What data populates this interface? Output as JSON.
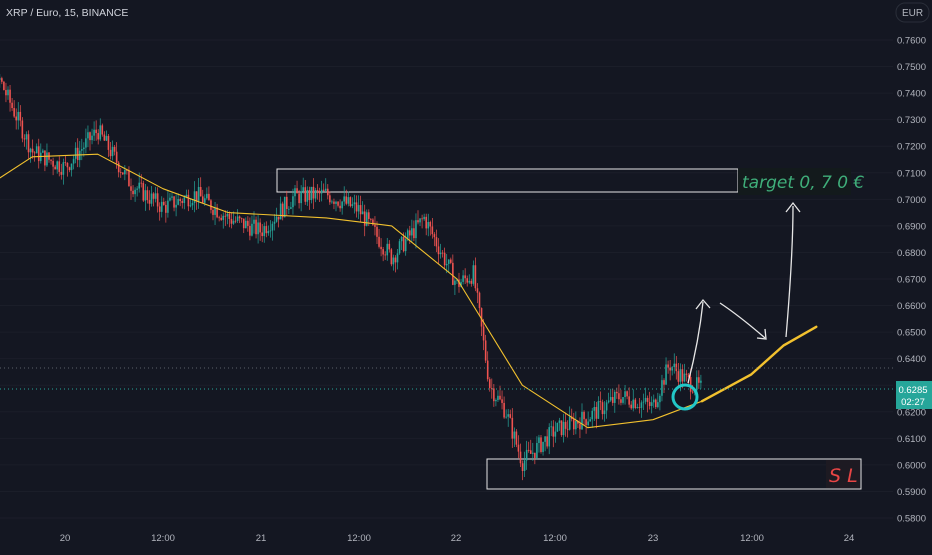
{
  "header": {
    "symbol_title": "XRP / Euro, 15, BINANCE",
    "currency_button": "EUR"
  },
  "price_axis": {
    "ticks": [
      "0.7600",
      "0.7500",
      "0.7400",
      "0.7300",
      "0.7200",
      "0.7100",
      "0.7000",
      "0.6900",
      "0.6800",
      "0.6700",
      "0.6600",
      "0.6500",
      "0.6400",
      "0.6300",
      "0.6200",
      "0.6100",
      "0.6000",
      "0.5900",
      "0.5800"
    ],
    "current_price": "0.6285",
    "countdown": "02:27"
  },
  "time_axis": {
    "ticks": [
      "20",
      "12:00",
      "21",
      "12:00",
      "22",
      "12:00",
      "23",
      "12:00",
      "24"
    ]
  },
  "annotations": {
    "target_label": "target 0, 7 0 €",
    "stop_loss_label": "S L"
  },
  "colors": {
    "background": "#141722",
    "up_candle": "#26a69a",
    "down_candle": "#ef5350",
    "moving_average": "#f2c12e",
    "price_line": "#26a69a",
    "target_text": "#3fae7a",
    "stop_loss_text": "#e84545",
    "circle": "#22c7c7",
    "box": "#e6e6e6"
  },
  "chart_data": {
    "type": "candlestick",
    "title": "XRP / Euro, 15, BINANCE",
    "timeframe": "15",
    "y_axis": {
      "unit": "EUR",
      "ylim": [
        0.577,
        0.775
      ]
    },
    "x_axis": {
      "tick_labels": [
        "20",
        "12:00",
        "21",
        "12:00",
        "22",
        "12:00",
        "23",
        "12:00",
        "24"
      ]
    },
    "last_price": 0.6285,
    "price_path": [
      {
        "t": "19 12:00",
        "p": 0.7
      },
      {
        "t": "19 16:00",
        "p": 0.745
      },
      {
        "t": "19 20:00",
        "p": 0.718
      },
      {
        "t": "20 00:00",
        "p": 0.712
      },
      {
        "t": "20 04:00",
        "p": 0.726
      },
      {
        "t": "20 08:00",
        "p": 0.706
      },
      {
        "t": "20 12:00",
        "p": 0.697
      },
      {
        "t": "20 16:00",
        "p": 0.702
      },
      {
        "t": "20 20:00",
        "p": 0.693
      },
      {
        "t": "21 00:00",
        "p": 0.688
      },
      {
        "t": "21 04:00",
        "p": 0.701
      },
      {
        "t": "21 08:00",
        "p": 0.702
      },
      {
        "t": "21 12:00",
        "p": 0.696
      },
      {
        "t": "21 16:00",
        "p": 0.678
      },
      {
        "t": "21 20:00",
        "p": 0.693
      },
      {
        "t": "22 00:00",
        "p": 0.668
      },
      {
        "t": "22 02:00",
        "p": 0.672
      },
      {
        "t": "22 04:00",
        "p": 0.63
      },
      {
        "t": "22 06:00",
        "p": 0.62
      },
      {
        "t": "22 08:00",
        "p": 0.601
      },
      {
        "t": "22 12:00",
        "p": 0.613
      },
      {
        "t": "22 16:00",
        "p": 0.618
      },
      {
        "t": "22 20:00",
        "p": 0.626
      },
      {
        "t": "23 00:00",
        "p": 0.622
      },
      {
        "t": "23 02:00",
        "p": 0.638
      },
      {
        "t": "23 04:00",
        "p": 0.632
      },
      {
        "t": "23 06:00",
        "p": 0.6285
      }
    ],
    "moving_average": [
      {
        "t": "19 12:00",
        "p": 0.7
      },
      {
        "t": "19 20:00",
        "p": 0.716
      },
      {
        "t": "20 04:00",
        "p": 0.717
      },
      {
        "t": "20 12:00",
        "p": 0.704
      },
      {
        "t": "20 20:00",
        "p": 0.695
      },
      {
        "t": "21 08:00",
        "p": 0.693
      },
      {
        "t": "21 16:00",
        "p": 0.69
      },
      {
        "t": "22 00:00",
        "p": 0.67
      },
      {
        "t": "22 08:00",
        "p": 0.63
      },
      {
        "t": "22 16:00",
        "p": 0.614
      },
      {
        "t": "23 00:00",
        "p": 0.617
      },
      {
        "t": "23 06:00",
        "p": 0.624
      }
    ],
    "projected_average": [
      {
        "t": "23 06:00",
        "p": 0.624
      },
      {
        "t": "23 12:00",
        "p": 0.634
      },
      {
        "t": "23 16:00",
        "p": 0.645
      },
      {
        "t": "23 20:00",
        "p": 0.652
      }
    ],
    "zones": [
      {
        "name": "target",
        "from": 0.7025,
        "to": 0.7115
      },
      {
        "name": "stop loss",
        "from": 0.5915,
        "to": 0.6025
      }
    ]
  }
}
